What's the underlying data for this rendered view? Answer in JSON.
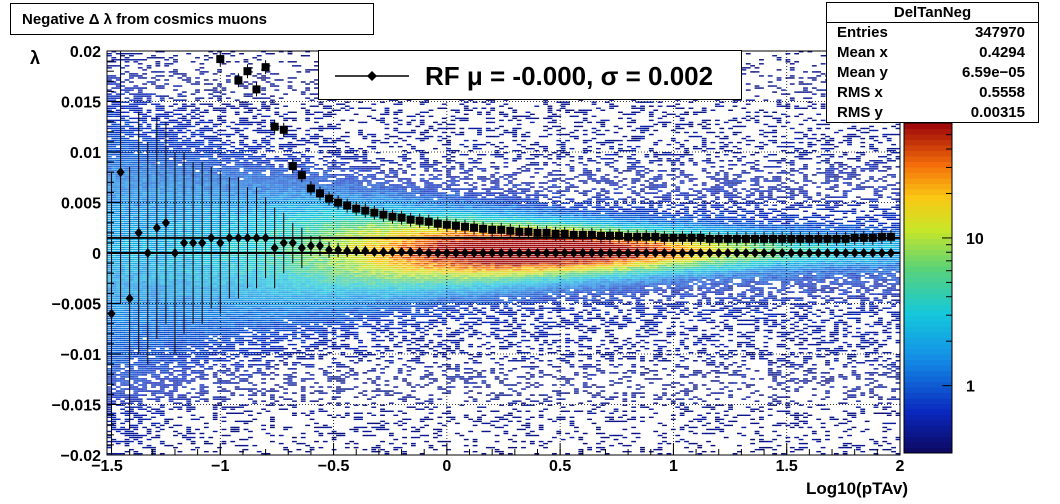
{
  "title": "Negative Δ λ from cosmics muons",
  "stats": {
    "name": "DelTanNeg",
    "rows": [
      {
        "label": "Entries",
        "value": "347970"
      },
      {
        "label": "Mean x",
        "value": "0.4294"
      },
      {
        "label": "Mean y",
        "value": "6.59e−05"
      },
      {
        "label": "RMS x",
        "value": "0.5558"
      },
      {
        "label": "RMS y",
        "value": "0.00315"
      }
    ]
  },
  "legend": {
    "text": "RF μ = -0.000, σ =   0.002"
  },
  "chart_data": {
    "type": "heatmap",
    "title": "Negative Δ λ from cosmics muons",
    "xlabel": "Log10(pTAv)",
    "ylabel": "λ",
    "xlim": [
      -1.5,
      2
    ],
    "ylim": [
      -0.02,
      0.02
    ],
    "grid": true,
    "colorbar": {
      "scale": "log",
      "tick_labels": [
        "1",
        "10"
      ],
      "tick_values": [
        1,
        10
      ]
    },
    "x_tick_labels": [
      "−1.5",
      "−1",
      "−0.5",
      "0",
      "0.5",
      "1",
      "1.5",
      "2"
    ],
    "y_tick_labels": [
      "0.02",
      "0.015",
      "0.01",
      "0.005",
      "0",
      "−0.005",
      "−0.01",
      "−0.015",
      "−0.02"
    ],
    "series": [
      {
        "name": "RF",
        "marker": "diamond",
        "x": [
          -1.48,
          -1.44,
          -1.4,
          -1.36,
          -1.32,
          -1.28,
          -1.24,
          -1.2,
          -1.16,
          -1.12,
          -1.08,
          -1.04,
          -1.0,
          -0.96,
          -0.92,
          -0.88,
          -0.84,
          -0.8,
          -0.76,
          -0.72,
          -0.68,
          -0.64,
          -0.6,
          -0.56,
          -0.52,
          -0.48,
          -0.44,
          -0.4,
          -0.36,
          -0.32,
          -0.28,
          -0.24,
          -0.2,
          -0.16,
          -0.12,
          -0.08,
          -0.04,
          0.0,
          0.04,
          0.08,
          0.12,
          0.16,
          0.2,
          0.24,
          0.28,
          0.32,
          0.36,
          0.4,
          0.44,
          0.48,
          0.52,
          0.56,
          0.6,
          0.64,
          0.68,
          0.72,
          0.76,
          0.8,
          0.84,
          0.88,
          0.92,
          0.96,
          1.0,
          1.04,
          1.08,
          1.12,
          1.16,
          1.2,
          1.24,
          1.28,
          1.32,
          1.36,
          1.4,
          1.44,
          1.48,
          1.52,
          1.56,
          1.6,
          1.64,
          1.68,
          1.72,
          1.76,
          1.8,
          1.84,
          1.88,
          1.92,
          1.96
        ],
        "y": [
          -0.006,
          0.008,
          -0.0045,
          0.002,
          0.0,
          0.0025,
          0.003,
          0.0,
          0.001,
          0.001,
          0.001,
          0.0015,
          0.001,
          0.0015,
          0.0015,
          0.0015,
          0.0015,
          0.0015,
          0.0005,
          0.001,
          0.001,
          0.0005,
          0.0007,
          0.0007,
          0.0003,
          0.0003,
          0.0002,
          0.0002,
          0.0002,
          0.0001,
          0.0001,
          0.0001,
          0.0001,
          0.0001,
          0.0001,
          0.0,
          0.0,
          0.0,
          0.0,
          0.0,
          0.0,
          0.0,
          0.0,
          0.0,
          0.0,
          0.0,
          0.0,
          0.0,
          0.0,
          0.0,
          0.0,
          0.0,
          0.0,
          0.0,
          0.0,
          0.0,
          0.0,
          0.0,
          0.0,
          0.0,
          0.0,
          0.0,
          0.0,
          0.0,
          0.0,
          0.0,
          0.0,
          0.0,
          0.0,
          0.0,
          0.0,
          0.0,
          0.0,
          0.0,
          0.0,
          0.0,
          0.0,
          0.0,
          0.0,
          0.0,
          0.0,
          0.0,
          0.0,
          0.0,
          0.0,
          0.0,
          0.0
        ],
        "err": [
          0.014,
          0.013,
          0.013,
          0.012,
          0.011,
          0.011,
          0.01,
          0.01,
          0.009,
          0.008,
          0.008,
          0.007,
          0.007,
          0.006,
          0.006,
          0.005,
          0.005,
          0.004,
          0.004,
          0.003,
          0.002,
          0.002,
          0.001,
          0.001,
          0.0008,
          0.0007,
          0.0006,
          0.0005,
          0.0005,
          0.0004,
          0.0004,
          0.0003,
          0.0003,
          0.0003,
          0.0003,
          0.0002,
          0.0002,
          0.0002,
          0.0002,
          0.0002,
          0.0002,
          0.0002,
          0.0002,
          0.0002,
          0.0002,
          0.0002,
          0.0002,
          0.0002,
          0.0002,
          0.0002,
          0.0002,
          0.0002,
          0.0002,
          0.0002,
          0.0002,
          0.0002,
          0.0002,
          0.0002,
          0.0002,
          0.0002,
          0.0002,
          0.0002,
          0.0002,
          0.0002,
          0.0002,
          0.0002,
          0.0002,
          0.0002,
          0.0002,
          0.0002,
          0.0002,
          0.0002,
          0.0002,
          0.0002,
          0.0002,
          0.0002,
          0.0002,
          0.0002,
          0.0002,
          0.0002,
          0.0002,
          0.0002,
          0.0002,
          0.0002,
          0.0002,
          0.0002,
          0.0002
        ]
      },
      {
        "marker": "square",
        "x": [
          -1.0,
          -0.96,
          -0.92,
          -0.88,
          -0.84,
          -0.8,
          -0.76,
          -0.72,
          -0.68,
          -0.64,
          -0.6,
          -0.56,
          -0.52,
          -0.48,
          -0.44,
          -0.4,
          -0.36,
          -0.32,
          -0.28,
          -0.24,
          -0.2,
          -0.16,
          -0.12,
          -0.08,
          -0.04,
          0.0,
          0.04,
          0.08,
          0.12,
          0.16,
          0.2,
          0.24,
          0.28,
          0.32,
          0.36,
          0.4,
          0.44,
          0.48,
          0.52,
          0.56,
          0.6,
          0.64,
          0.68,
          0.72,
          0.76,
          0.8,
          0.84,
          0.88,
          0.92,
          0.96,
          1.0,
          1.04,
          1.08,
          1.12,
          1.16,
          1.2,
          1.24,
          1.28,
          1.32,
          1.36,
          1.4,
          1.44,
          1.48,
          1.52,
          1.56,
          1.6,
          1.64,
          1.68,
          1.72,
          1.76,
          1.8,
          1.84,
          1.88,
          1.92,
          1.96
        ],
        "y": [
          0.0192,
          0.0,
          0.0171,
          0.018,
          0.0162,
          0.0184,
          0.0125,
          0.0122,
          0.0086,
          0.0077,
          0.0064,
          0.0059,
          0.0054,
          0.005,
          0.0047,
          0.0044,
          0.0042,
          0.004,
          0.0038,
          0.0036,
          0.0035,
          0.0033,
          0.0032,
          0.0031,
          0.0029,
          0.0028,
          0.0027,
          0.0026,
          0.0025,
          0.0024,
          0.0023,
          0.0023,
          0.0022,
          0.0021,
          0.0021,
          0.002,
          0.002,
          0.0019,
          0.0019,
          0.0018,
          0.0018,
          0.0018,
          0.0017,
          0.0017,
          0.0017,
          0.0016,
          0.0016,
          0.0016,
          0.0016,
          0.0015,
          0.0015,
          0.0015,
          0.0015,
          0.0015,
          0.0014,
          0.0014,
          0.0014,
          0.0014,
          0.0014,
          0.0014,
          0.0014,
          0.0014,
          0.0014,
          0.0014,
          0.0014,
          0.0014,
          0.0014,
          0.0014,
          0.0014,
          0.0014,
          0.0015,
          0.0015,
          0.0015,
          0.0016,
          0.0016
        ]
      }
    ],
    "reference_lines": [
      0.0,
      0.0015
    ]
  },
  "colors": {
    "frame": "#000000",
    "grid": "#000000",
    "markers": "#000000"
  }
}
